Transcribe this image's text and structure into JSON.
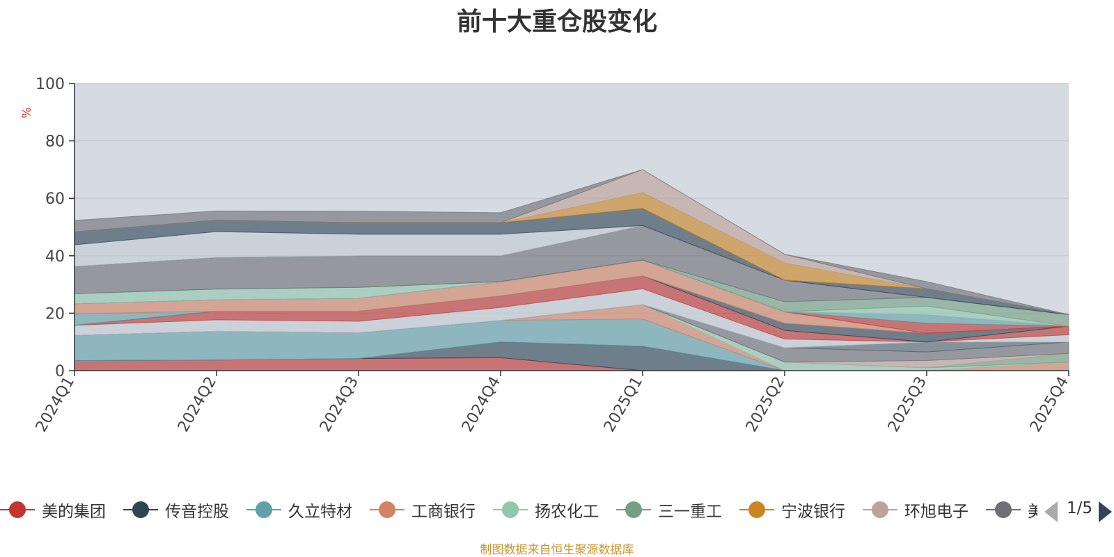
{
  "chart_data": {
    "type": "area",
    "title": "前十大重仓股变化",
    "unit_label": "%",
    "ylim": [
      0,
      100
    ],
    "y_ticks": [
      0,
      20,
      40,
      60,
      80,
      100
    ],
    "categories": [
      "2024Q1",
      "2024Q2",
      "2024Q3",
      "2024Q4",
      "2025Q1",
      "2025Q2",
      "2025Q3",
      "2025Q4"
    ],
    "plot_background": "#d6dbe1",
    "grid": true,
    "legend_position": "bottom",
    "legend_page": "1/5",
    "source_note": "制图数据来自恒生聚源数据库",
    "series": [
      {
        "name": "美的集团",
        "color": "#c23531",
        "values": [
          3.5,
          3.7,
          4.2,
          4.5,
          0,
          0,
          0,
          0
        ]
      },
      {
        "name": "",
        "color": "#2f4554",
        "values": [
          0,
          0,
          0,
          5.5,
          8.5,
          0,
          0,
          0
        ]
      },
      {
        "name": "",
        "color": "#61a0a8",
        "values": [
          8.8,
          10,
          9,
          7.5,
          9.5,
          0,
          0,
          0
        ]
      },
      {
        "name": "",
        "color": "#d48265",
        "values": [
          0,
          0,
          0,
          0,
          5,
          0,
          0,
          3
        ]
      },
      {
        "name": "",
        "color": "#91c7ae",
        "values": [
          0,
          0,
          0,
          0,
          0,
          3,
          1,
          0
        ]
      },
      {
        "name": "",
        "color": "#749f83",
        "values": [
          0,
          0,
          0,
          0,
          0,
          0,
          0,
          3
        ]
      },
      {
        "name": "",
        "color": "#bda29a",
        "values": [
          0,
          0,
          0,
          0,
          0,
          0,
          2.5,
          0
        ]
      },
      {
        "name": "",
        "color": "#6e7074",
        "values": [
          0,
          0,
          0,
          0,
          0,
          5,
          3,
          4
        ]
      },
      {
        "name": "",
        "color": "#546570",
        "values": [
          0,
          0,
          0,
          0,
          0,
          0,
          3.5,
          0
        ]
      },
      {
        "name": "",
        "color": "#c4ccd3",
        "values": [
          3.5,
          4,
          4,
          4.5,
          5.5,
          3,
          0,
          2.5
        ]
      },
      {
        "name": "",
        "color": "#c23531",
        "values": [
          0,
          3,
          3.5,
          4,
          4.5,
          3,
          0,
          3
        ]
      },
      {
        "name": "",
        "color": "#2f4554",
        "values": [
          0,
          0,
          0,
          0,
          0,
          2.5,
          3,
          0
        ]
      },
      {
        "name": "",
        "color": "#61a0a8",
        "values": [
          4,
          0,
          0,
          0,
          0,
          0,
          0,
          0
        ]
      },
      {
        "name": "",
        "color": "#d48265",
        "values": [
          3.5,
          4,
          4.5,
          5,
          5.5,
          4,
          0,
          0
        ]
      },
      {
        "name": "",
        "color": "#c23531",
        "values": [
          0,
          0,
          0,
          0,
          0,
          0,
          3.5,
          0
        ]
      },
      {
        "name": "",
        "color": "#61a0a8",
        "values": [
          0,
          0,
          0,
          0,
          0,
          0,
          3,
          0
        ]
      },
      {
        "name": "",
        "color": "#91c7ae",
        "values": [
          3.5,
          3.7,
          3.8,
          0,
          0,
          0,
          3,
          0
        ]
      },
      {
        "name": "",
        "color": "#749f83",
        "values": [
          0,
          0,
          0,
          0,
          0,
          3.5,
          3,
          4
        ]
      },
      {
        "name": "",
        "color": "#6e7074",
        "values": [
          9.5,
          11,
          11,
          9,
          12,
          7.5,
          0,
          0
        ]
      },
      {
        "name": "",
        "color": "#2f4554",
        "values": [
          0,
          0,
          0,
          0,
          0,
          0,
          3,
          0
        ]
      },
      {
        "name": "",
        "color": "#c4ccd3",
        "values": [
          7.5,
          9,
          7.5,
          7.5,
          0,
          0,
          0,
          0
        ]
      },
      {
        "name": "",
        "color": "#2f4554",
        "values": [
          4.5,
          4,
          4,
          4,
          6,
          0,
          0,
          0
        ]
      },
      {
        "name": "",
        "color": "#ca8622",
        "values": [
          0,
          0,
          0,
          0,
          5.5,
          6,
          0,
          0
        ]
      },
      {
        "name": "",
        "color": "#bda29a",
        "values": [
          0,
          0,
          0,
          0,
          8,
          3,
          0,
          0
        ]
      },
      {
        "name": "",
        "color": "#6e7074",
        "values": [
          4,
          3.2,
          4,
          3.5,
          0,
          0,
          2.5,
          0
        ]
      }
    ]
  },
  "legend": {
    "items": [
      {
        "label": "美的集团",
        "color": "#c23531"
      },
      {
        "label": "传音控股",
        "color": "#2f4554"
      },
      {
        "label": "久立特材",
        "color": "#61a0a8"
      },
      {
        "label": "工商银行",
        "color": "#d48265"
      },
      {
        "label": "扬农化工",
        "color": "#91c7ae"
      },
      {
        "label": "三一重工",
        "color": "#749f83"
      },
      {
        "label": "宁波银行",
        "color": "#ca8622"
      },
      {
        "label": "环旭电子",
        "color": "#bda29a"
      },
      {
        "label": "美",
        "color": "#6e7074"
      }
    ]
  }
}
